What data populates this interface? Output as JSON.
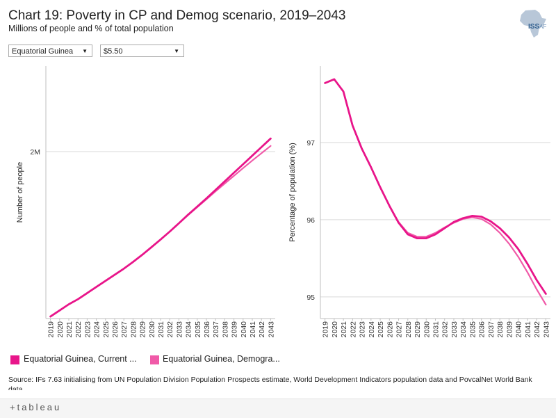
{
  "title": "Chart 19: Poverty in CP and Demog scenario, 2019–2043",
  "subtitle": "Millions of people and % of total population",
  "filters": {
    "country": "Equatorial Guinea",
    "threshold": "$5.50"
  },
  "logo": {
    "main": "ISS",
    "suffix": "AF"
  },
  "colors": {
    "current_path": "#e8158a",
    "demographic": "#f05aa8"
  },
  "chart_data": [
    {
      "type": "line",
      "ylabel": "Number of people",
      "yticks": [
        {
          "value": 2.0,
          "label": "2M"
        }
      ],
      "ylim": [
        1.18,
        2.42
      ],
      "x": [
        2019,
        2020,
        2021,
        2022,
        2023,
        2024,
        2025,
        2026,
        2027,
        2028,
        2029,
        2030,
        2031,
        2032,
        2033,
        2034,
        2035,
        2036,
        2037,
        2038,
        2039,
        2040,
        2041,
        2042,
        2043
      ],
      "series": [
        {
          "name": "Equatorial Guinea, Current Path",
          "values": [
            1.19,
            1.22,
            1.25,
            1.275,
            1.305,
            1.335,
            1.365,
            1.395,
            1.425,
            1.458,
            1.493,
            1.53,
            1.568,
            1.607,
            1.648,
            1.69,
            1.73,
            1.77,
            1.812,
            1.854,
            1.896,
            1.938,
            1.98,
            2.022,
            2.064
          ]
        },
        {
          "name": "Equatorial Guinea, Demographic",
          "values": [
            1.19,
            1.22,
            1.25,
            1.275,
            1.305,
            1.335,
            1.365,
            1.395,
            1.425,
            1.458,
            1.493,
            1.53,
            1.568,
            1.607,
            1.648,
            1.688,
            1.727,
            1.766,
            1.805,
            1.843,
            1.881,
            1.919,
            1.956,
            1.992,
            2.028
          ]
        }
      ]
    },
    {
      "type": "line",
      "ylabel": "Percentage of population (%)",
      "yticks": [
        {
          "value": 95,
          "label": "95"
        },
        {
          "value": 96,
          "label": "96"
        },
        {
          "value": 97,
          "label": "97"
        }
      ],
      "ylim": [
        94.72,
        97.99
      ],
      "x": [
        2019,
        2020,
        2021,
        2022,
        2023,
        2024,
        2025,
        2026,
        2027,
        2028,
        2029,
        2030,
        2031,
        2032,
        2033,
        2034,
        2035,
        2036,
        2037,
        2038,
        2039,
        2040,
        2041,
        2042,
        2043
      ],
      "series": [
        {
          "name": "Equatorial Guinea, Current Path",
          "values": [
            97.77,
            97.82,
            97.66,
            97.22,
            96.92,
            96.68,
            96.42,
            96.18,
            95.96,
            95.81,
            95.76,
            95.76,
            95.81,
            95.89,
            95.97,
            96.02,
            96.05,
            96.04,
            95.98,
            95.89,
            95.77,
            95.62,
            95.43,
            95.22,
            95.04
          ]
        },
        {
          "name": "Equatorial Guinea, Demographic",
          "values": [
            97.77,
            97.82,
            97.66,
            97.22,
            96.92,
            96.68,
            96.42,
            96.18,
            95.97,
            95.83,
            95.78,
            95.78,
            95.83,
            95.9,
            95.96,
            96.01,
            96.03,
            96.01,
            95.94,
            95.83,
            95.69,
            95.52,
            95.32,
            95.1,
            94.9
          ]
        }
      ]
    }
  ],
  "legend": [
    {
      "label": "Equatorial Guinea, Current ..."
    },
    {
      "label": "Equatorial Guinea, Demogra..."
    }
  ],
  "source": "Source: IFs 7.63 initialising from UN Population Division Population Prospects estimate, World Development Indicators population data and PovcalNet World Bank data",
  "footer": {
    "brand": "+tableau"
  }
}
